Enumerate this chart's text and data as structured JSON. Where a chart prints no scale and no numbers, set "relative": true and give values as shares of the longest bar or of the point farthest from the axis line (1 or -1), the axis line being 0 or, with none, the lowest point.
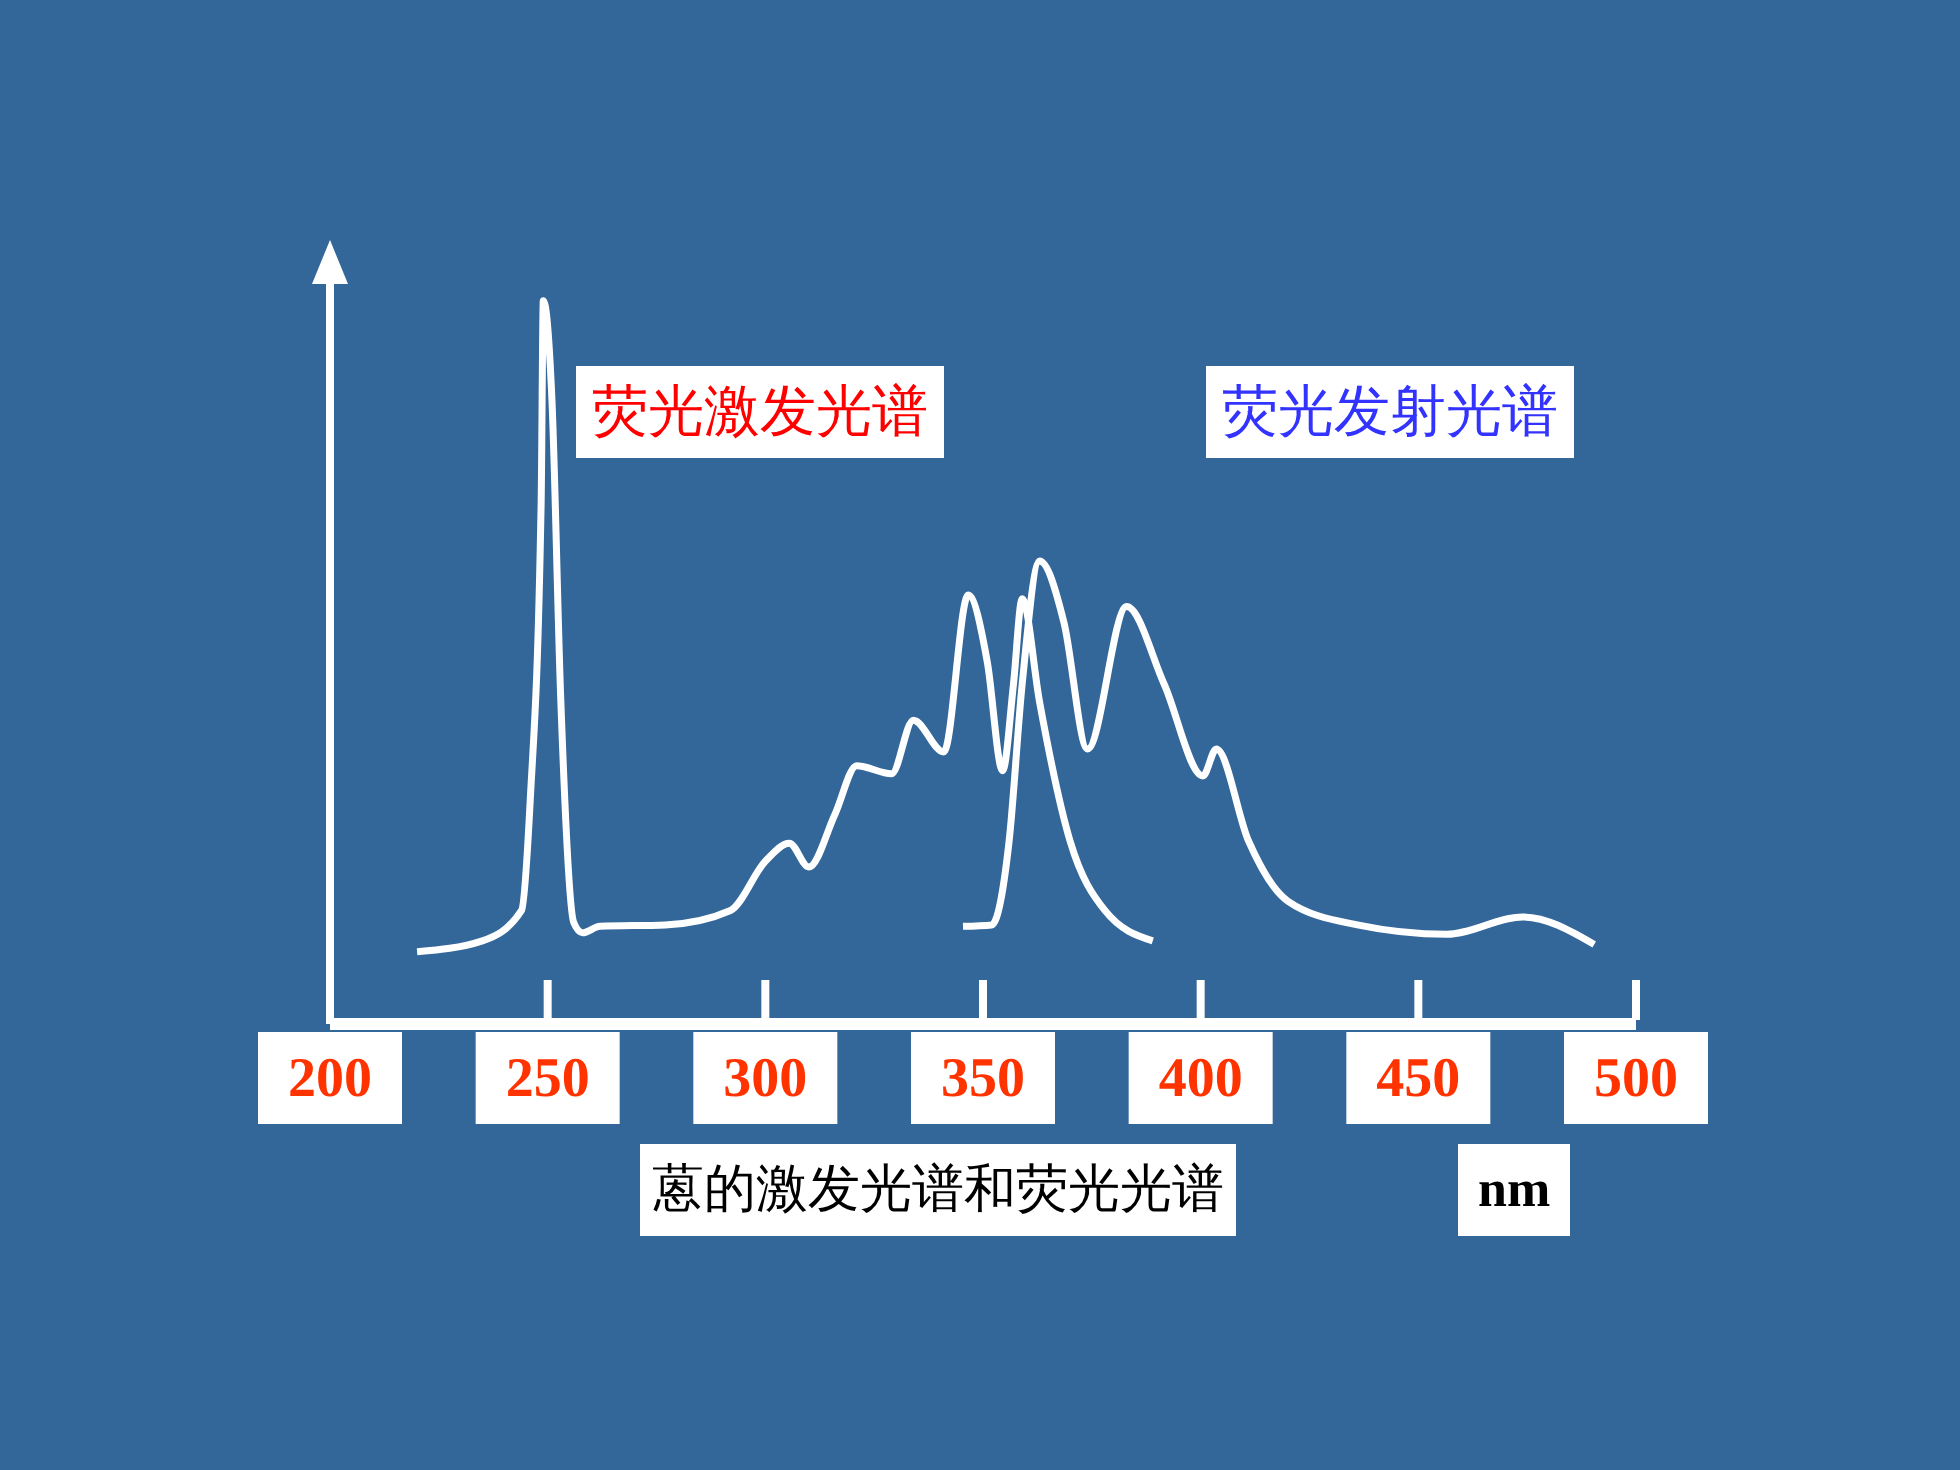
{
  "chart_data": {
    "type": "line",
    "relative": true,
    "xlabel": "蒽的激发光谱和荧光光谱",
    "annotations": [
      "nm"
    ],
    "xlim": [
      200,
      500
    ],
    "xticks": [
      200,
      250,
      300,
      350,
      400,
      450,
      500
    ],
    "marker": "none",
    "grid": false,
    "legend": false,
    "tick_labels": "x",
    "series": [
      {
        "name": "荧光激发光谱",
        "color": "#ffffff",
        "x": [
          220,
          235,
          244,
          246,
          248.5,
          249,
          251,
          253,
          256,
          258,
          262,
          277,
          292,
          300,
          305.5,
          310,
          316,
          321,
          329,
          334,
          341,
          346.6,
          351,
          354.5,
          357,
          359,
          363,
          370,
          378,
          389
        ],
        "values": [
          0.1,
          0.115,
          0.157,
          0.31,
          0.72,
          1,
          0.86,
          0.45,
          0.14,
          0.126,
          0.135,
          0.137,
          0.157,
          0.225,
          0.25,
          0.217,
          0.29,
          0.357,
          0.346,
          0.42,
          0.376,
          0.593,
          0.5,
          0.35,
          0.47,
          0.588,
          0.445,
          0.253,
          0.157,
          0.115
        ]
      },
      {
        "name": "荧光发射光谱",
        "color": "#ffffff",
        "x": [
          345.4,
          352,
          356,
          359,
          363,
          368.6,
          374,
          383,
          391.6,
          400.5,
          403.6,
          411,
          420,
          436,
          456.5,
          474,
          490.4
        ],
        "values": [
          0.135,
          0.137,
          0.253,
          0.47,
          0.64,
          0.555,
          0.38,
          0.577,
          0.47,
          0.343,
          0.38,
          0.253,
          0.17,
          0.137,
          0.124,
          0.148,
          0.11
        ]
      }
    ]
  }
}
